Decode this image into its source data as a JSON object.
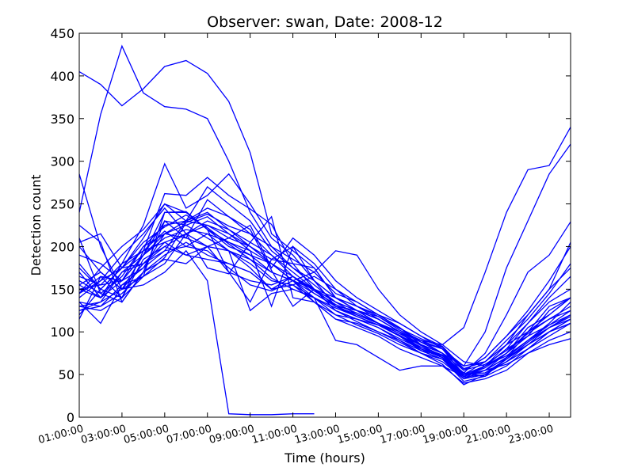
{
  "chart_data": {
    "type": "line",
    "title": "Observer: swan, Date: 2008-12",
    "xlabel": "Time (hours)",
    "ylabel": "Detection count",
    "x": [
      "01:00:00",
      "02:00:00",
      "03:00:00",
      "04:00:00",
      "05:00:00",
      "06:00:00",
      "07:00:00",
      "08:00:00",
      "09:00:00",
      "10:00:00",
      "11:00:00",
      "12:00:00",
      "13:00:00",
      "14:00:00",
      "15:00:00",
      "16:00:00",
      "17:00:00",
      "18:00:00",
      "19:00:00",
      "20:00:00",
      "21:00:00",
      "22:00:00",
      "23:00:00",
      "24:00:00"
    ],
    "xticks": [
      "01:00:00",
      "03:00:00",
      "05:00:00",
      "07:00:00",
      "09:00:00",
      "11:00:00",
      "13:00:00",
      "15:00:00",
      "17:00:00",
      "19:00:00",
      "21:00:00",
      "23:00:00"
    ],
    "ylim": [
      0,
      450
    ],
    "yticks": [
      0,
      50,
      100,
      150,
      200,
      250,
      300,
      350,
      400,
      450
    ],
    "line_color": "#0000ff",
    "grid": false,
    "series": [
      {
        "values": [
          405,
          390,
          365,
          385,
          411,
          418,
          403,
          370,
          310,
          215,
          195,
          175,
          140,
          125,
          115,
          100,
          90,
          75,
          48,
          55,
          70,
          100,
          130,
          140
        ]
      },
      {
        "values": [
          240,
          355,
          435,
          380,
          364,
          361,
          350,
          300,
          240,
          200,
          185,
          170,
          145,
          135,
          120,
          110,
          95,
          80,
          50,
          60,
          80,
          110,
          135,
          150
        ]
      },
      {
        "values": [
          170,
          140,
          180,
          225,
          297,
          245,
          260,
          285,
          250,
          210,
          190,
          160,
          140,
          130,
          120,
          105,
          85,
          75,
          55,
          70,
          95,
          120,
          150,
          175
        ]
      },
      {
        "values": [
          130,
          135,
          150,
          190,
          240,
          241,
          220,
          170,
          135,
          185,
          200,
          180,
          150,
          130,
          115,
          100,
          80,
          70,
          48,
          60,
          85,
          110,
          140,
          165
        ]
      },
      {
        "values": [
          180,
          150,
          175,
          210,
          250,
          230,
          270,
          250,
          230,
          195,
          175,
          160,
          140,
          125,
          110,
          95,
          80,
          70,
          50,
          65,
          90,
          115,
          145,
          180
        ]
      },
      {
        "values": [
          120,
          150,
          140,
          195,
          262,
          260,
          281,
          260,
          244,
          226,
          180,
          150,
          125,
          115,
          105,
          90,
          75,
          68,
          45,
          60,
          80,
          95,
          125,
          140
        ]
      },
      {
        "values": [
          205,
          215,
          175,
          180,
          195,
          230,
          240,
          220,
          200,
          180,
          160,
          145,
          130,
          120,
          110,
          100,
          88,
          80,
          55,
          70,
          95,
          125,
          160,
          200
        ]
      },
      {
        "values": [
          160,
          145,
          165,
          200,
          215,
          230,
          245,
          235,
          215,
          200,
          175,
          155,
          135,
          125,
          118,
          102,
          90,
          85,
          105,
          170,
          240,
          290,
          295,
          340
        ]
      },
      {
        "values": [
          130,
          125,
          140,
          185,
          200,
          215,
          225,
          215,
          195,
          180,
          165,
          150,
          130,
          120,
          110,
          98,
          85,
          75,
          60,
          100,
          175,
          230,
          285,
          320
        ]
      },
      {
        "values": [
          145,
          160,
          175,
          205,
          223,
          237,
          222,
          203,
          185,
          163,
          150,
          140,
          128,
          118,
          108,
          95,
          82,
          73,
          52,
          75,
          120,
          170,
          190,
          229
        ]
      },
      {
        "values": [
          150,
          155,
          160,
          190,
          210,
          220,
          215,
          195,
          185,
          170,
          160,
          150,
          135,
          125,
          115,
          100,
          90,
          80,
          60,
          65,
          85,
          120,
          150,
          205
        ]
      },
      {
        "values": [
          135,
          130,
          155,
          165,
          187,
          228,
          238,
          224,
          215,
          190,
          165,
          148,
          132,
          122,
          110,
          98,
          84,
          72,
          48,
          58,
          75,
          100,
          120,
          140
        ]
      },
      {
        "values": [
          190,
          180,
          160,
          175,
          195,
          200,
          215,
          205,
          190,
          170,
          160,
          150,
          140,
          130,
          118,
          104,
          92,
          82,
          55,
          62,
          78,
          98,
          115,
          130
        ]
      },
      {
        "values": [
          155,
          170,
          150,
          180,
          205,
          190,
          185,
          180,
          170,
          150,
          155,
          165,
          150,
          135,
          120,
          105,
          88,
          75,
          50,
          60,
          72,
          90,
          105,
          120
        ]
      },
      {
        "values": [
          125,
          135,
          170,
          180,
          200,
          190,
          200,
          210,
          225,
          175,
          210,
          190,
          160,
          140,
          125,
          110,
          95,
          83,
          57,
          65,
          85,
          100,
          115,
          125
        ]
      },
      {
        "values": [
          145,
          165,
          140,
          165,
          180,
          215,
          200,
          170,
          160,
          155,
          165,
          150,
          135,
          120,
          110,
          95,
          85,
          75,
          50,
          55,
          70,
          90,
          110,
          135
        ]
      },
      {
        "values": [
          135,
          110,
          155,
          175,
          215,
          210,
          200,
          195,
          175,
          150,
          155,
          135,
          120,
          115,
          105,
          92,
          80,
          70,
          47,
          50,
          65,
          85,
          100,
          115
        ]
      },
      {
        "values": [
          125,
          130,
          145,
          170,
          190,
          205,
          190,
          180,
          170,
          150,
          165,
          145,
          130,
          118,
          108,
          95,
          78,
          72,
          50,
          52,
          65,
          80,
          95,
          110
        ]
      },
      {
        "values": [
          225,
          205,
          135,
          170,
          230,
          210,
          255,
          235,
          220,
          172,
          130,
          150,
          125,
          115,
          108,
          95,
          78,
          68,
          42,
          48,
          70,
          85,
          100,
          115
        ]
      },
      {
        "values": [
          285,
          200,
          150,
          165,
          240,
          240,
          220,
          205,
          195,
          130,
          200,
          160,
          130,
          125,
          115,
          100,
          85,
          70,
          45,
          55,
          75,
          95,
          108,
          120
        ]
      },
      {
        "values": [
          115,
          165,
          160,
          190,
          230,
          225,
          210,
          195,
          125,
          145,
          150,
          140,
          125,
          112,
          100,
          88,
          75,
          62,
          38,
          50,
          68,
          88,
          105,
          118
        ]
      },
      {
        "values": [
          210,
          145,
          135,
          170,
          185,
          180,
          200,
          195,
          180,
          160,
          155,
          140,
          120,
          108,
          98,
          85,
          75,
          65,
          45,
          50,
          65,
          80,
          100,
          110
        ]
      },
      {
        "values": [
          175,
          150,
          175,
          195,
          205,
          215,
          230,
          220,
          205,
          190,
          170,
          150,
          130,
          118,
          108,
          96,
          82,
          70,
          48,
          55,
          70,
          90,
          108,
          125
        ]
      },
      {
        "values": [
          140,
          160,
          190,
          215,
          245,
          215,
          175,
          168,
          205,
          235,
          140,
          135,
          115,
          110,
          100,
          90,
          78,
          68,
          50,
          52,
          68,
          85,
          105,
          115
        ]
      },
      {
        "values": [
          145,
          175,
          200,
          220,
          250,
          240,
          220,
          200,
          190,
          180,
          160,
          140,
          90,
          85,
          70,
          55,
          60,
          60,
          40,
          45,
          55,
          75,
          90,
          100
        ]
      },
      {
        "values": [
          150,
          140,
          160,
          200,
          225,
          230,
          225,
          210,
          200,
          180,
          160,
          135,
          115,
          105,
          95,
          80,
          70,
          60,
          48,
          55,
          62,
          75,
          85,
          92
        ]
      },
      {
        "values": [
          165,
          155,
          180,
          195,
          218,
          200,
          195,
          175,
          155,
          148,
          160,
          170,
          195,
          190,
          150,
          120,
          100,
          85,
          65,
          60,
          75,
          105,
          120,
          140
        ]
      },
      {
        "values": [
          155,
          140,
          170,
          190,
          215,
          225,
          235,
          215,
          200,
          185,
          180,
          175,
          140,
          125,
          110,
          95,
          80,
          72,
          52,
          48,
          60,
          80,
          100,
          110
        ]
      },
      {
        "values": [
          200,
          170,
          150,
          155,
          170,
          195,
          160,
          4,
          3,
          3,
          4,
          4,
          null,
          null,
          null,
          null,
          null,
          null,
          null,
          null,
          null,
          null,
          null,
          null
        ]
      }
    ]
  }
}
